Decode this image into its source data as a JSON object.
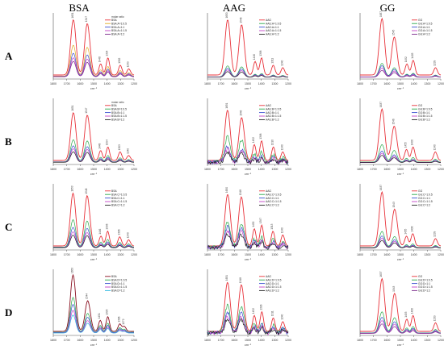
{
  "figure": {
    "columns": [
      "BSA",
      "AAG",
      "GG"
    ],
    "rows": [
      "A",
      "B",
      "C",
      "D"
    ]
  },
  "chart_data": [
    {
      "type": "line",
      "protein": "BSA",
      "row": "A",
      "xlabel": "cm⁻¹",
      "xlim": [
        1800,
        1200
      ],
      "x_ticks": [
        1800,
        1700,
        1600,
        1500,
        1400,
        1300,
        1200
      ],
      "legend_title": "molar ratio",
      "legend": [
        "BSA",
        "BSA:A=1:0.5",
        "BSA:A=1:1",
        "BSA:A=1:1.5",
        "BSA:A=1:2"
      ],
      "colors": [
        "#e8323a",
        "#e0aa20",
        "#3a4fd0",
        "#c542c8",
        "#7a2a8a"
      ],
      "scales": [
        1,
        0.56,
        0.42,
        0.34,
        0.28
      ],
      "peaks": [
        1651,
        1547,
        1448,
        1394,
        1302,
        1239
      ],
      "peak_heights": [
        0.9,
        0.84,
        0.18,
        0.28,
        0.16,
        0.1
      ]
    },
    {
      "type": "line",
      "protein": "BSA",
      "row": "B",
      "xlabel": "cm⁻¹",
      "xlim": [
        1800,
        1200
      ],
      "x_ticks": [
        1800,
        1700,
        1600,
        1500,
        1400,
        1300,
        1200
      ],
      "legend_title": "molar ratio",
      "legend": [
        "BSA",
        "BSA:B=1:0.5",
        "BSA:B=1:1",
        "BSA:B=1:1.5",
        "BSA:B=1:2"
      ],
      "colors": [
        "#e8323a",
        "#2aa84a",
        "#3a4fd0",
        "#c542c8",
        "#222222"
      ],
      "scales": [
        1,
        0.46,
        0.34,
        0.28,
        0.22
      ],
      "peaks": [
        1651,
        1547,
        1448,
        1394,
        1303,
        1240
      ],
      "peak_heights": [
        0.78,
        0.74,
        0.16,
        0.22,
        0.14,
        0.08
      ]
    },
    {
      "type": "line",
      "protein": "BSA",
      "row": "C",
      "xlabel": "cm⁻¹",
      "xlim": [
        1800,
        1200
      ],
      "x_ticks": [
        1800,
        1700,
        1600,
        1500,
        1400,
        1300,
        1200
      ],
      "legend_title": "",
      "legend": [
        "BSA",
        "BSA:C=1:0.5",
        "BSA:C=1:1",
        "BSA:C=1:1.5",
        "BSA:C=1:2"
      ],
      "colors": [
        "#e8323a",
        "#2aa84a",
        "#3a4fd0",
        "#c542c8",
        "#222222"
      ],
      "scales": [
        1,
        0.52,
        0.38,
        0.3,
        0.24
      ],
      "peaks": [
        1653,
        1548,
        1446,
        1396,
        1306,
        1240
      ],
      "peak_heights": [
        0.86,
        0.82,
        0.16,
        0.24,
        0.15,
        0.1
      ]
    },
    {
      "type": "line",
      "protein": "BSA",
      "row": "D",
      "xlabel": "cm⁻¹",
      "xlim": [
        1800,
        1200
      ],
      "x_ticks": [
        1800,
        1700,
        1600,
        1500,
        1400,
        1300,
        1200
      ],
      "legend_title": "",
      "legend": [
        "BSA",
        "BSA:D=1:0.5",
        "BSA:D=1:1",
        "BSA:D=1:1.5",
        "BSA:D=1:2"
      ],
      "colors": [
        "#8a1020",
        "#2aa84a",
        "#3a4fd0",
        "#c542c8",
        "#2ab8e0"
      ],
      "scales": [
        1,
        0.62,
        0.5,
        0.4,
        0.32
      ],
      "peaks": [
        1653,
        1544,
        1451,
        1395,
        1306,
        1272
      ],
      "peak_heights": [
        0.92,
        0.5,
        0.18,
        0.24,
        0.12,
        0.08
      ]
    },
    {
      "type": "line",
      "protein": "AAG",
      "row": "A",
      "xlabel": "cm⁻¹",
      "xlim": [
        1800,
        1200
      ],
      "x_ticks": [
        1800,
        1700,
        1600,
        1500,
        1400,
        1300,
        1200
      ],
      "legend_title": "",
      "legend": [
        "AAG",
        "AAG:A=1:0.5",
        "AAG:A=1:1",
        "AAG:A=1:1.5",
        "AAG:A=1:2"
      ],
      "colors": [
        "#e8323a",
        "#2aa84a",
        "#3a4fd0",
        "#c542c8",
        "#222222"
      ],
      "scales": [
        1,
        0.2,
        0.16,
        0.13,
        0.1
      ],
      "peaks": [
        1650,
        1546,
        1446,
        1398,
        1311,
        1240
      ],
      "peak_heights": [
        0.9,
        0.82,
        0.22,
        0.28,
        0.16,
        0.12
      ]
    },
    {
      "type": "line",
      "protein": "AAG",
      "row": "B",
      "xlabel": "cm⁻¹",
      "xlim": [
        1800,
        1200
      ],
      "x_ticks": [
        1800,
        1700,
        1600,
        1500,
        1400,
        1300,
        1200
      ],
      "legend_title": "",
      "legend": [
        "AAG",
        "AAG:B=1:0.5",
        "AAG:B=1:1",
        "AAG:B=1:1.5",
        "AAG:B=1:2"
      ],
      "colors": [
        "#e8323a",
        "#2aa84a",
        "#3a4fd0",
        "#c542c8",
        "#222222"
      ],
      "scales": [
        1,
        0.5,
        0.32,
        0.26,
        0.2
      ],
      "peaks": [
        1651,
        1546,
        1452,
        1398,
        1310,
        1240
      ],
      "peak_heights": [
        0.82,
        0.7,
        0.26,
        0.32,
        0.22,
        0.14
      ]
    },
    {
      "type": "line",
      "protein": "AAG",
      "row": "C",
      "xlabel": "cm⁻¹",
      "xlim": [
        1800,
        1200
      ],
      "x_ticks": [
        1800,
        1700,
        1600,
        1500,
        1400,
        1300,
        1200
      ],
      "legend_title": "",
      "legend": [
        "AAG",
        "AAG:C=1:0.5",
        "AAG:C=1:1",
        "AAG:C=1:1.5",
        "AAG:C=1:2"
      ],
      "colors": [
        "#e8323a",
        "#2aa84a",
        "#3a4fd0",
        "#c542c8",
        "#222222"
      ],
      "scales": [
        1,
        0.5,
        0.4,
        0.32,
        0.26
      ],
      "peaks": [
        1650,
        1548,
        1452,
        1397,
        1313,
        1240
      ],
      "peak_heights": [
        0.84,
        0.8,
        0.28,
        0.34,
        0.24,
        0.18
      ]
    },
    {
      "type": "line",
      "protein": "AAG",
      "row": "D",
      "xlabel": "cm⁻¹",
      "xlim": [
        1800,
        1200
      ],
      "x_ticks": [
        1800,
        1700,
        1600,
        1500,
        1400,
        1300,
        1200
      ],
      "legend_title": "",
      "legend": [
        "AAG",
        "AAG:D=1:0.5",
        "AAG:D=1:1",
        "AAG:D=1:1.5",
        "AAG:D=1:2"
      ],
      "colors": [
        "#e8323a",
        "#2aa84a",
        "#3a4fd0",
        "#c542c8",
        "#222222"
      ],
      "scales": [
        1,
        0.55,
        0.42,
        0.34,
        0.28
      ],
      "peaks": [
        1651,
        1548,
        1452,
        1396,
        1311,
        1240
      ],
      "peak_heights": [
        0.8,
        0.76,
        0.26,
        0.32,
        0.22,
        0.16
      ]
    },
    {
      "type": "line",
      "protein": "GG",
      "row": "A",
      "xlabel": "cm⁻¹",
      "xlim": [
        1800,
        1200
      ],
      "x_ticks": [
        1800,
        1700,
        1600,
        1500,
        1400,
        1300,
        1200
      ],
      "legend_title": "",
      "legend": [
        "GG",
        "GG:A=1:0.5",
        "GG:A=1:1",
        "GG:A=1:1.5",
        "GG:A=1:2"
      ],
      "colors": [
        "#e8323a",
        "#2aa84a",
        "#3a4fd0",
        "#c542c8",
        "#7a2a8a"
      ],
      "scales": [
        1,
        0.24,
        0.2,
        0.16,
        0.12
      ],
      "peaks": [
        1637,
        1545,
        1452,
        1405,
        1239
      ],
      "peak_heights": [
        0.92,
        0.62,
        0.18,
        0.24,
        0.12
      ]
    },
    {
      "type": "line",
      "protein": "GG",
      "row": "B",
      "xlabel": "cm⁻¹",
      "xlim": [
        1800,
        1200
      ],
      "x_ticks": [
        1800,
        1700,
        1600,
        1500,
        1400,
        1300,
        1200
      ],
      "legend_title": "",
      "legend": [
        "GG",
        "GG:B=1:0.5",
        "GG:B=1:1",
        "GG:B=1:1.5",
        "GG:B=1:2"
      ],
      "colors": [
        "#e8323a",
        "#2aa84a",
        "#3a4fd0",
        "#c542c8",
        "#222222"
      ],
      "scales": [
        1,
        0.34,
        0.22,
        0.18,
        0.14
      ],
      "peaks": [
        1637,
        1546,
        1455,
        1406,
        1240
      ],
      "peak_heights": [
        0.84,
        0.56,
        0.18,
        0.22,
        0.14
      ]
    },
    {
      "type": "line",
      "protein": "GG",
      "row": "C",
      "xlabel": "cm⁻¹",
      "xlim": [
        1800,
        1200
      ],
      "x_ticks": [
        1800,
        1700,
        1600,
        1500,
        1400,
        1300,
        1200
      ],
      "legend_title": "",
      "legend": [
        "GG",
        "GG:C=1:0.5",
        "GG:C=1:1",
        "GG:C=1:1.5",
        "GG:C=1:2"
      ],
      "colors": [
        "#e8323a",
        "#2aa84a",
        "#3a4fd0",
        "#c542c8",
        "#222222"
      ],
      "scales": [
        1,
        0.3,
        0.22,
        0.18,
        0.14
      ],
      "peaks": [
        1637,
        1543,
        1455,
        1408,
        1239
      ],
      "peak_heights": [
        0.88,
        0.6,
        0.16,
        0.2,
        0.12
      ]
    },
    {
      "type": "line",
      "protein": "GG",
      "row": "D",
      "xlabel": "cm⁻¹",
      "xlim": [
        1800,
        1200
      ],
      "x_ticks": [
        1800,
        1700,
        1600,
        1500,
        1400,
        1300,
        1200
      ],
      "legend_title": "",
      "legend": [
        "GG",
        "GG:D=1:0.5",
        "GG:D=1:1",
        "GG:D=1:1.5",
        "GG:D=1:2"
      ],
      "colors": [
        "#e8323a",
        "#2aa84a",
        "#3a4fd0",
        "#c542c8",
        "#7a2a8a"
      ],
      "scales": [
        1,
        0.4,
        0.3,
        0.24,
        0.18
      ],
      "peaks": [
        1637,
        1543,
        1453,
        1406,
        1239
      ],
      "peak_heights": [
        0.86,
        0.62,
        0.2,
        0.26,
        0.14
      ]
    }
  ]
}
